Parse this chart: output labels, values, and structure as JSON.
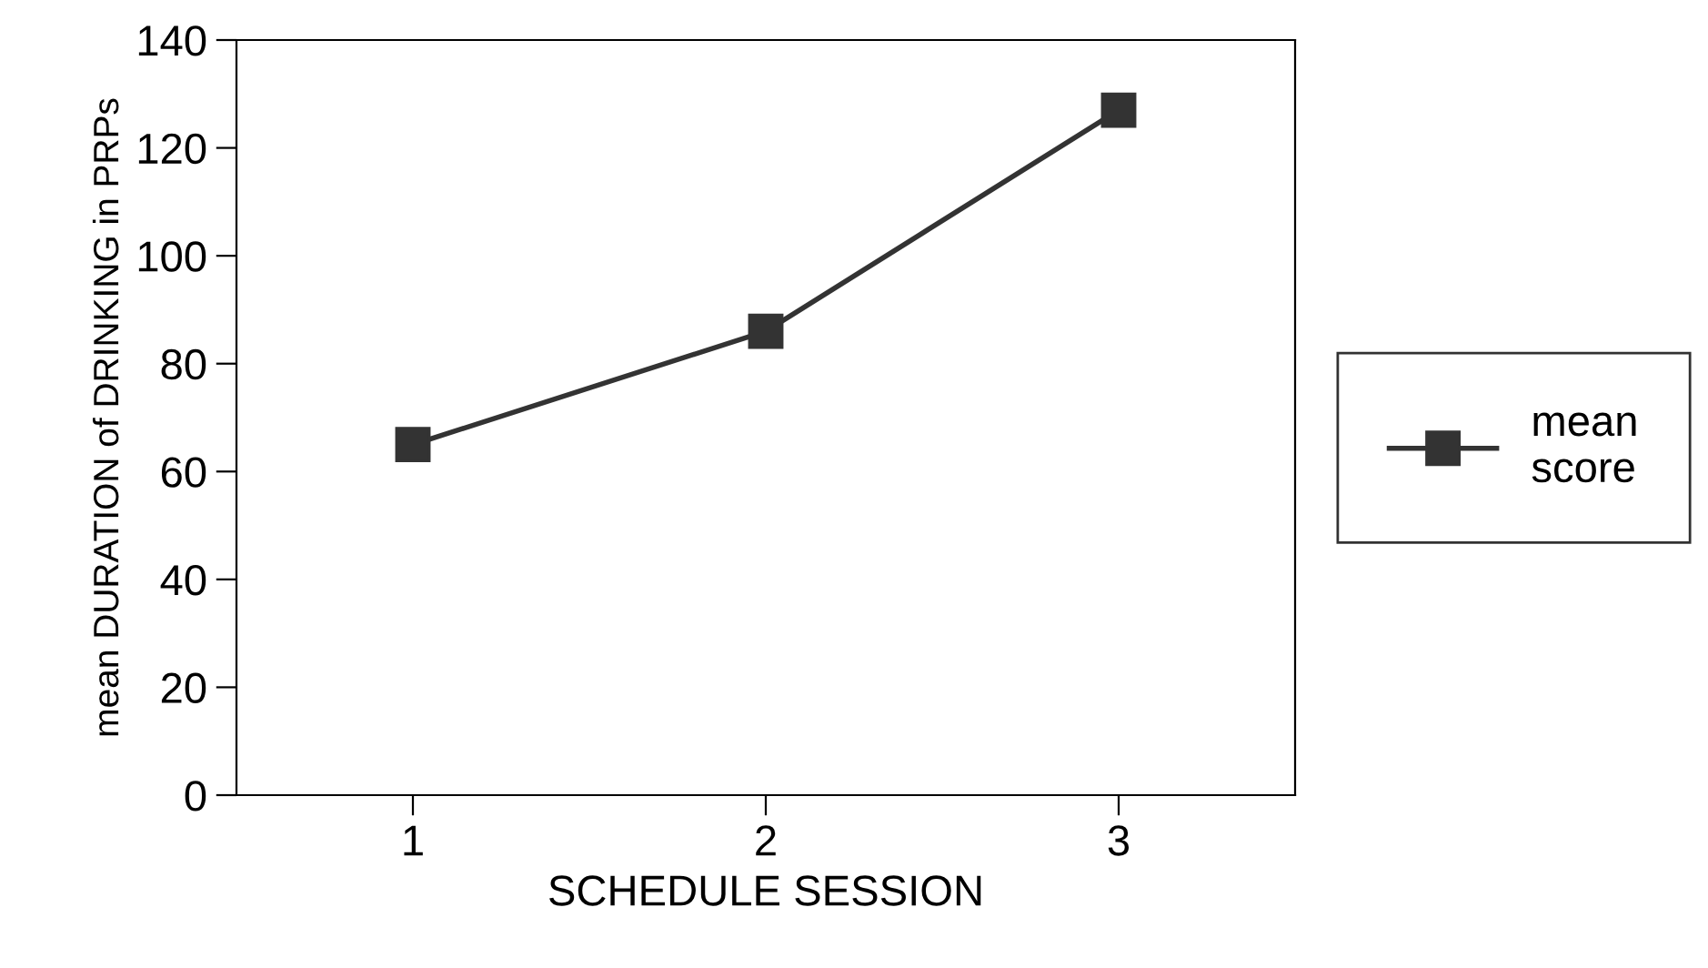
{
  "chart_data": {
    "type": "line",
    "xlabel": "SCHEDULE SESSION",
    "ylabel": "mean DURATION of DRINKING in PRPs",
    "categories": [
      "1",
      "2",
      "3"
    ],
    "series": [
      {
        "name": "mean\nscore",
        "color": "#333333",
        "values": [
          65,
          86,
          127
        ]
      }
    ],
    "ylim": [
      0,
      140
    ],
    "yticks": [
      0,
      20,
      40,
      60,
      80,
      100,
      120,
      140
    ],
    "grid": false,
    "legend": "right",
    "marker": "square",
    "line_style": "solid"
  }
}
